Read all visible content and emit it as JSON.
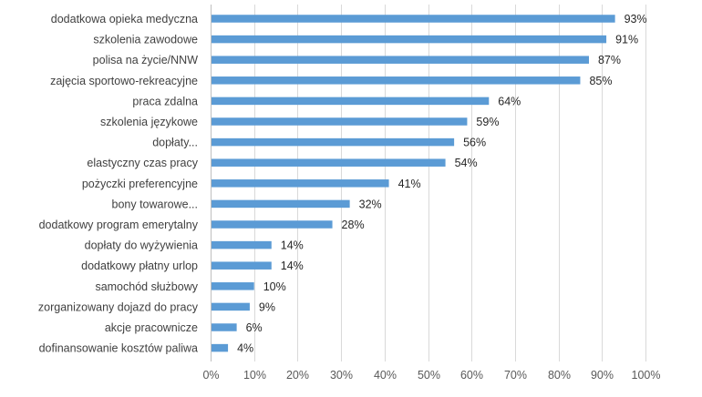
{
  "chart_data": {
    "type": "bar",
    "orientation": "horizontal",
    "title": "",
    "xlabel": "",
    "ylabel": "",
    "xlim": [
      0,
      100
    ],
    "x_ticks": [
      "0%",
      "10%",
      "20%",
      "30%",
      "40%",
      "50%",
      "60%",
      "70%",
      "80%",
      "90%",
      "100%"
    ],
    "grid": true,
    "legend": "none",
    "bar_color": "#5B9BD5",
    "categories": [
      "dodatkowa opieka medyczna",
      "szkolenia zawodowe",
      "polisa na życie/NNW",
      "zajęcia sportowo-rekreacyjne",
      "praca zdalna",
      "szkolenia językowe",
      "dopłaty...",
      "elastyczny czas pracy",
      "pożyczki preferencyjne",
      "bony towarowe...",
      "dodatkowy program emerytalny",
      "dopłaty do wyżywienia",
      "dodatkowy płatny urlop",
      "samochód służbowy",
      "zorganizowany dojazd do pracy",
      "akcje pracownicze",
      "dofinansowanie kosztów paliwa"
    ],
    "values": [
      93,
      91,
      87,
      85,
      64,
      59,
      56,
      54,
      41,
      32,
      28,
      14,
      14,
      10,
      9,
      6,
      4
    ],
    "value_labels": [
      "93%",
      "91%",
      "87%",
      "85%",
      "64%",
      "59%",
      "56%",
      "54%",
      "41%",
      "32%",
      "28%",
      "14%",
      "14%",
      "10%",
      "9%",
      "6%",
      "4%"
    ]
  }
}
